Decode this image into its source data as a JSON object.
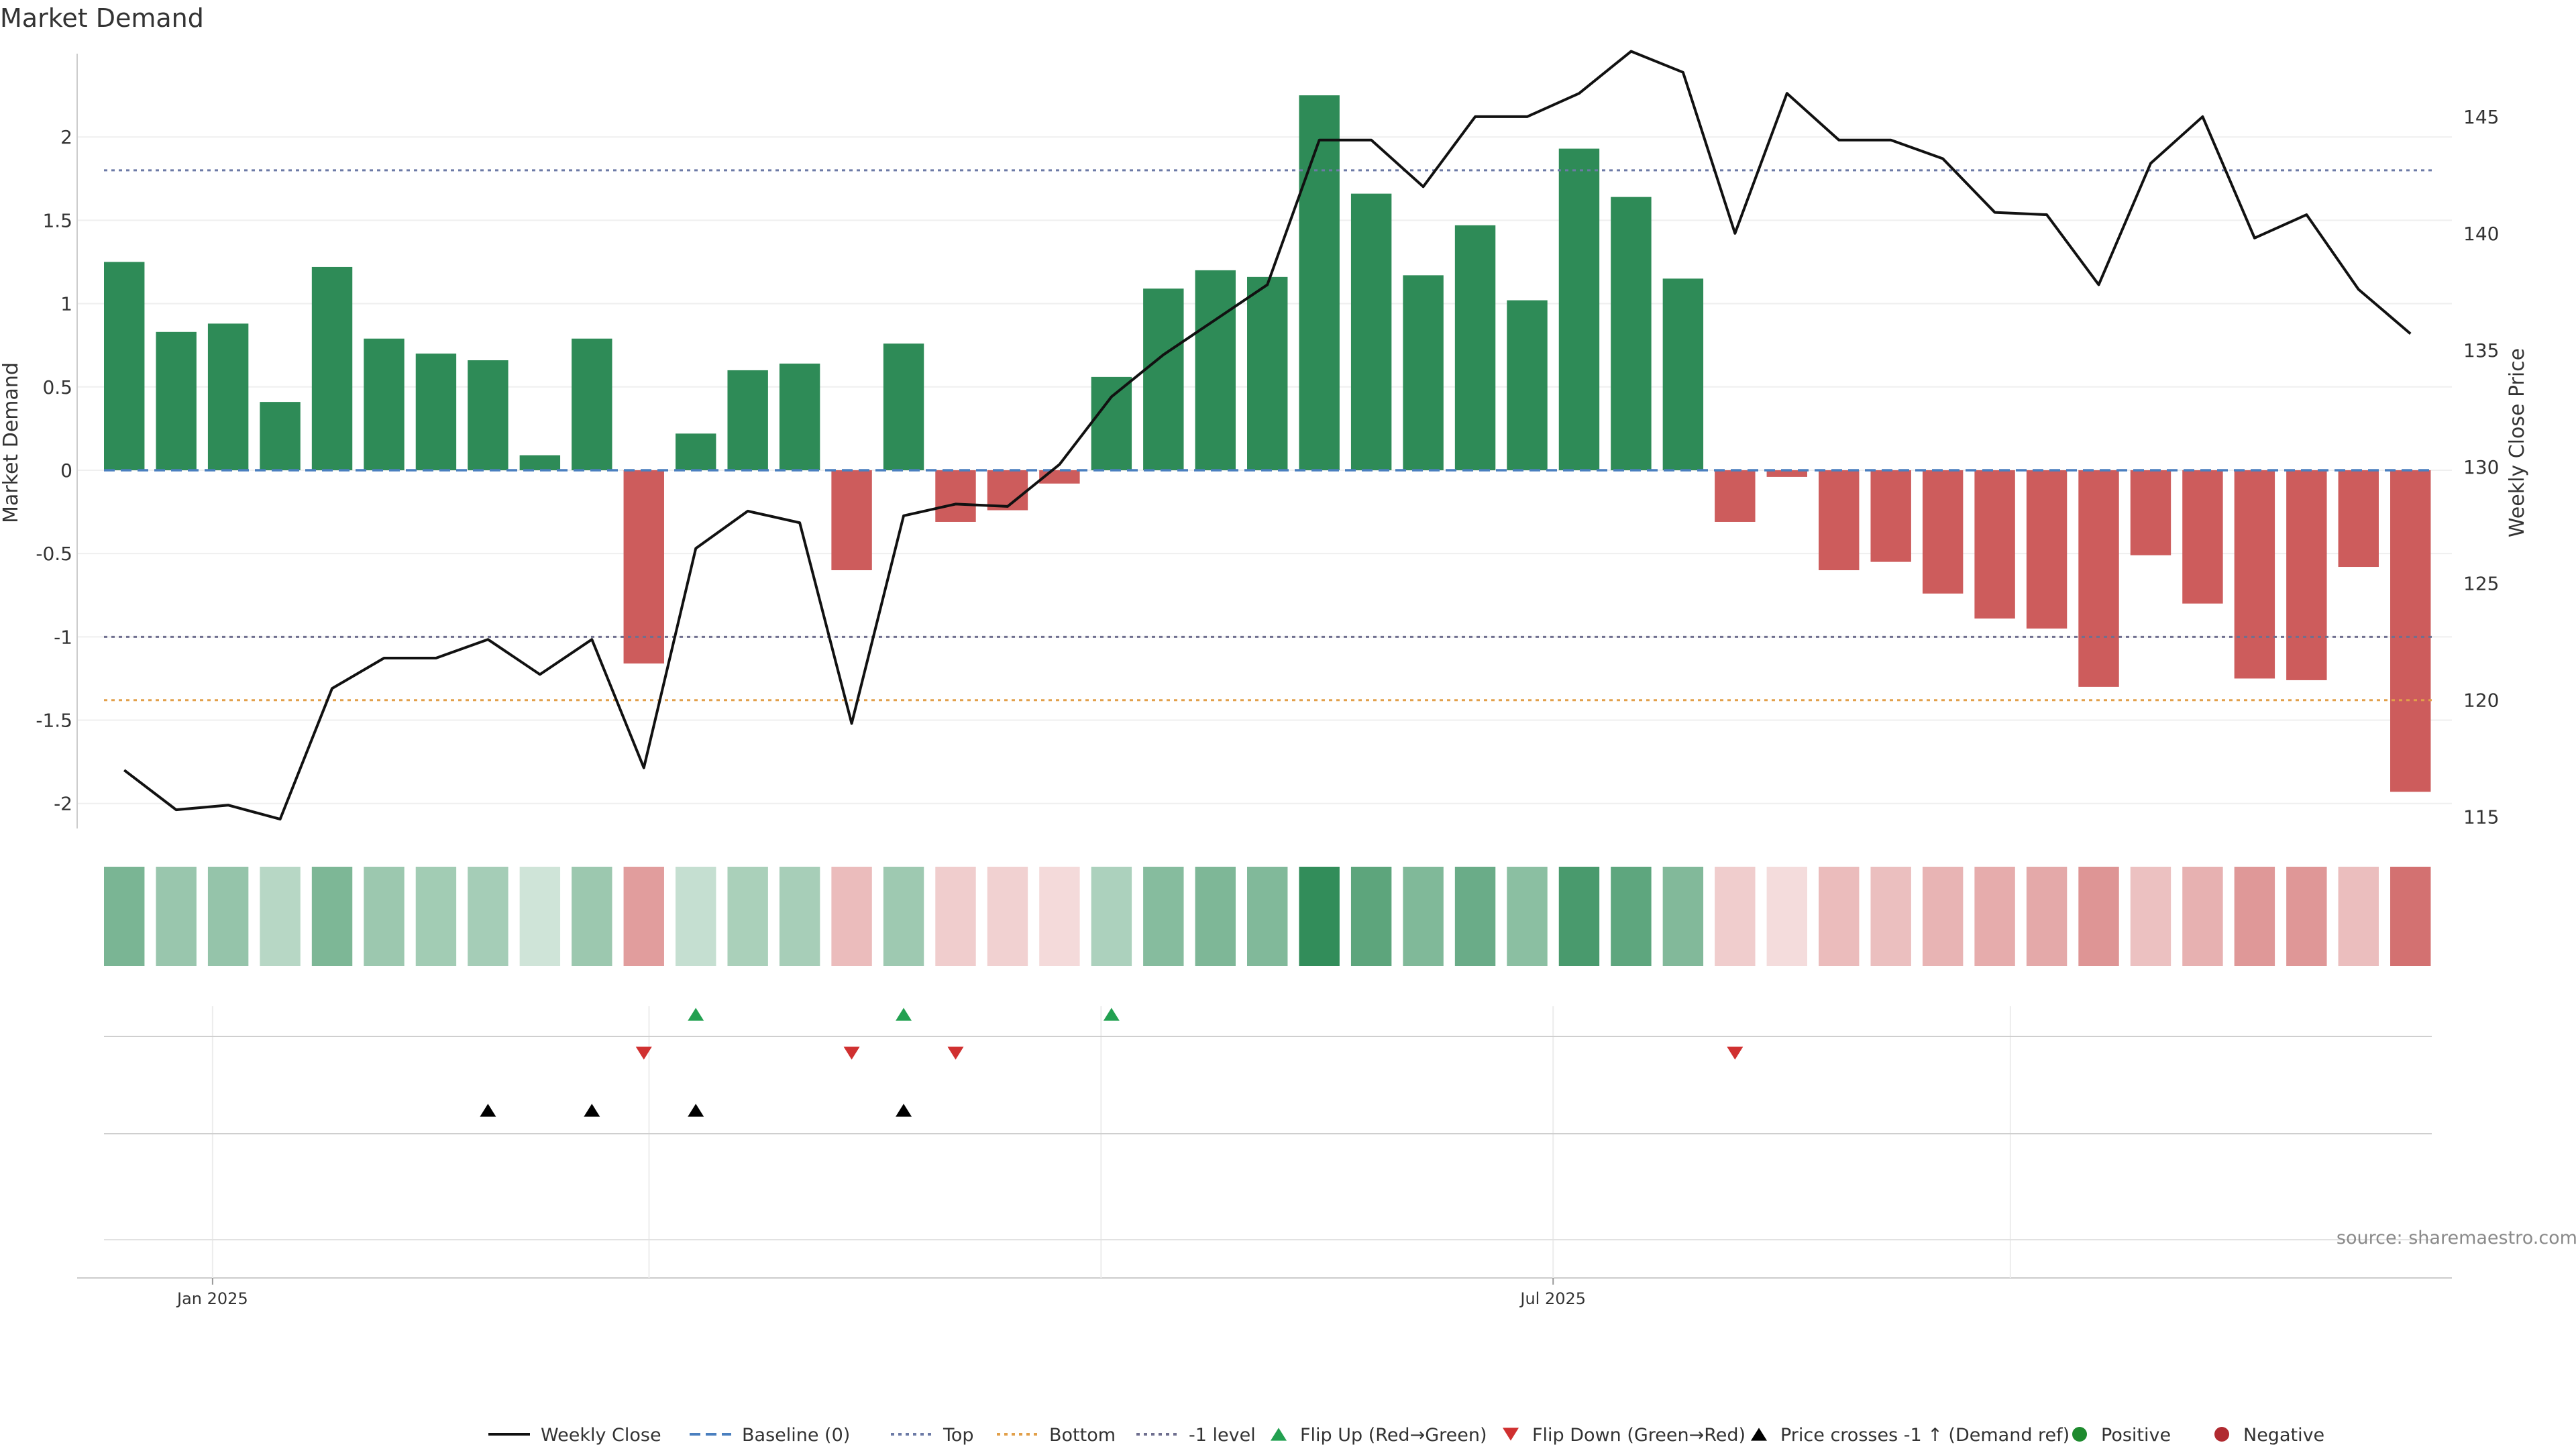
{
  "chart_data": {
    "type": "bar",
    "title": "Market Demand",
    "ylabel": "Market Demand",
    "y2label": "Weekly Close Price",
    "ylim": [
      -2.15,
      2.5
    ],
    "y2lim": [
      114.5,
      147.7
    ],
    "yticks": [
      "2",
      "1.5",
      "1",
      "0.5",
      "0",
      "-0.5",
      "-1",
      "-1.5",
      "-2"
    ],
    "ytick_values": [
      2,
      1.5,
      1,
      0.5,
      0,
      -0.5,
      -1,
      -1.5,
      -2
    ],
    "y2ticks": [
      "145",
      "140",
      "135",
      "130",
      "125",
      "120",
      "115"
    ],
    "y2tick_values": [
      145,
      140,
      135,
      130,
      125,
      120,
      115
    ],
    "xticks": [
      "Jan 2025",
      "Jul 2025"
    ],
    "xtick_index": [
      1.7,
      27.5
    ],
    "levels": {
      "baseline": 0,
      "top": 1.8,
      "bottom": -1.38,
      "minus_one": -1
    },
    "demand": [
      1.25,
      0.83,
      0.88,
      0.41,
      1.22,
      0.79,
      0.7,
      0.66,
      0.09,
      0.79,
      -1.16,
      0.22,
      0.6,
      0.64,
      -0.6,
      0.76,
      -0.31,
      -0.24,
      -0.08,
      0.56,
      1.09,
      1.2,
      1.16,
      2.25,
      1.66,
      1.17,
      1.47,
      1.02,
      1.93,
      1.64,
      1.15,
      -0.31,
      -0.04,
      -0.6,
      -0.55,
      -0.74,
      -0.89,
      -0.95,
      -1.3,
      -0.51,
      -0.8,
      -1.25,
      -1.26,
      -0.58,
      -1.93
    ],
    "weekly_close": [
      117.0,
      115.3,
      115.5,
      114.9,
      120.5,
      121.8,
      121.8,
      122.6,
      121.1,
      122.6,
      117.1,
      126.5,
      128.1,
      127.6,
      119.0,
      127.9,
      128.4,
      128.3,
      130.1,
      133.0,
      134.8,
      136.3,
      137.8,
      144.0,
      144.0,
      142.0,
      145.0,
      145.0,
      146.0,
      147.8,
      146.9,
      140.0,
      146.0,
      144.0,
      144.0,
      143.2,
      140.9,
      140.8,
      137.8,
      143.0,
      145.0,
      139.8,
      140.8,
      137.6,
      135.7
    ],
    "flip_up_index": [
      11,
      15,
      19
    ],
    "flip_down_index": [
      10,
      14,
      16,
      31
    ],
    "price_cross_index": [
      7,
      9,
      11,
      15
    ],
    "legend_position": "bottom-center",
    "legend": [
      "Weekly Close",
      "Baseline (0)",
      "Top",
      "Bottom",
      "-1 level",
      "Flip Up (Red→Green)",
      "Flip Down (Green→Red)",
      "Price crosses -1 ↑ (Demand ref)",
      "Positive",
      "Negative"
    ],
    "source": "source: sharemaestro.com"
  },
  "colors": {
    "positive": "#2e8b57",
    "negative": "#cd5c5c",
    "price_line": "#111111",
    "baseline": "#4a7fbf",
    "top": "#6c7aa6",
    "bottom": "#e2a04a",
    "minus_one": "#6f6f8f",
    "flip_up": "#22a050",
    "flip_down": "#d03030",
    "price_cross": "#000000",
    "legend_positive": "#1e8a2e",
    "legend_negative": "#b02a30"
  }
}
